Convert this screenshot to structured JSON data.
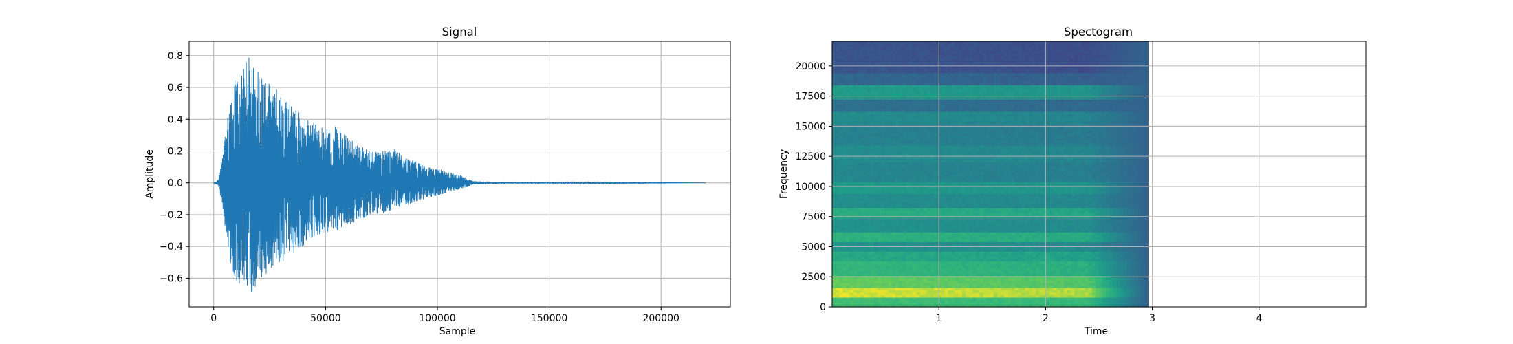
{
  "chart_data": [
    {
      "type": "line",
      "title": "Signal",
      "xlabel": "Sample",
      "ylabel": "Amplitude",
      "xlim": [
        -11000,
        231000
      ],
      "ylim": [
        -0.78,
        0.89
      ],
      "xticks": [
        0,
        50000,
        100000,
        150000,
        200000
      ],
      "xtick_labels": [
        "0",
        "50000",
        "100000",
        "150000",
        "200000"
      ],
      "yticks": [
        -0.6,
        -0.4,
        -0.2,
        0.0,
        0.2,
        0.4,
        0.6,
        0.8
      ],
      "ytick_labels": [
        "−0.6",
        "−0.4",
        "−0.2",
        "0.0",
        "0.2",
        "0.4",
        "0.6",
        "0.8"
      ],
      "grid": true,
      "color": "#1f77b4",
      "series": [
        {
          "envelope": {
            "x": [
              0,
              2000,
              4000,
              6000,
              8000,
              10000,
              12000,
              14000,
              16000,
              18000,
              20000,
              25000,
              30000,
              35000,
              40000,
              45000,
              50000,
              55000,
              60000,
              65000,
              70000,
              75000,
              80000,
              85000,
              90000,
              95000,
              100000,
              105000,
              110000,
              113000,
              116000,
              120000,
              128000,
              220000
            ],
            "upper": [
              0.0,
              0.02,
              0.18,
              0.42,
              0.6,
              0.66,
              0.68,
              0.74,
              0.83,
              0.76,
              0.72,
              0.62,
              0.58,
              0.5,
              0.42,
              0.38,
              0.34,
              0.36,
              0.3,
              0.24,
              0.2,
              0.2,
              0.22,
              0.17,
              0.14,
              0.1,
              0.09,
              0.07,
              0.05,
              0.03,
              0.01,
              0.01,
              0.005,
              0.0
            ],
            "lower": [
              0.0,
              -0.02,
              -0.16,
              -0.38,
              -0.55,
              -0.62,
              -0.68,
              -0.66,
              -0.72,
              -0.68,
              -0.62,
              -0.55,
              -0.52,
              -0.46,
              -0.4,
              -0.36,
              -0.32,
              -0.3,
              -0.28,
              -0.24,
              -0.2,
              -0.2,
              -0.18,
              -0.15,
              -0.12,
              -0.1,
              -0.08,
              -0.06,
              -0.04,
              -0.03,
              -0.01,
              -0.01,
              -0.005,
              0.0
            ]
          },
          "x_end": 220000
        }
      ]
    },
    {
      "type": "heatmap",
      "title": "Spectogram",
      "xlabel": "Time",
      "ylabel": "Frequency",
      "xlim": [
        0.0,
        5.0
      ],
      "ylim": [
        0,
        22050
      ],
      "data_time_range": [
        0.0,
        2.96
      ],
      "xticks": [
        1,
        2,
        3,
        4
      ],
      "xtick_labels": [
        "1",
        "2",
        "3",
        "4"
      ],
      "yticks": [
        0,
        2500,
        5000,
        7500,
        10000,
        12500,
        15000,
        17500,
        20000
      ],
      "ytick_labels": [
        "0",
        "2500",
        "5000",
        "7500",
        "10000",
        "12500",
        "15000",
        "17500",
        "20000"
      ],
      "grid": true,
      "colormap": "viridis",
      "bands": [
        {
          "freq_low": 0,
          "freq_high": 800,
          "intensity": 0.78
        },
        {
          "freq_low": 800,
          "freq_high": 1600,
          "intensity": 0.97
        },
        {
          "freq_low": 1600,
          "freq_high": 2600,
          "intensity": 0.86
        },
        {
          "freq_low": 2600,
          "freq_high": 3800,
          "intensity": 0.74
        },
        {
          "freq_low": 3800,
          "freq_high": 4700,
          "intensity": 0.68
        },
        {
          "freq_low": 4700,
          "freq_high": 5500,
          "intensity": 0.58
        },
        {
          "freq_low": 5500,
          "freq_high": 6300,
          "intensity": 0.72
        },
        {
          "freq_low": 6300,
          "freq_high": 7400,
          "intensity": 0.58
        },
        {
          "freq_low": 7400,
          "freq_high": 8200,
          "intensity": 0.7
        },
        {
          "freq_low": 8200,
          "freq_high": 9500,
          "intensity": 0.56
        },
        {
          "freq_low": 9500,
          "freq_high": 10500,
          "intensity": 0.62
        },
        {
          "freq_low": 10500,
          "freq_high": 12000,
          "intensity": 0.52
        },
        {
          "freq_low": 12000,
          "freq_high": 13500,
          "intensity": 0.55
        },
        {
          "freq_low": 13500,
          "freq_high": 15200,
          "intensity": 0.5
        },
        {
          "freq_low": 15200,
          "freq_high": 16200,
          "intensity": 0.55
        },
        {
          "freq_low": 16200,
          "freq_high": 17300,
          "intensity": 0.42
        },
        {
          "freq_low": 17300,
          "freq_high": 18500,
          "intensity": 0.62
        },
        {
          "freq_low": 18500,
          "freq_high": 19500,
          "intensity": 0.38
        },
        {
          "freq_low": 19500,
          "freq_high": 22050,
          "intensity": 0.3
        }
      ],
      "decay": {
        "fade_start": 2.4,
        "fade_end": 2.95,
        "floor_intensity": 0.36
      }
    }
  ]
}
